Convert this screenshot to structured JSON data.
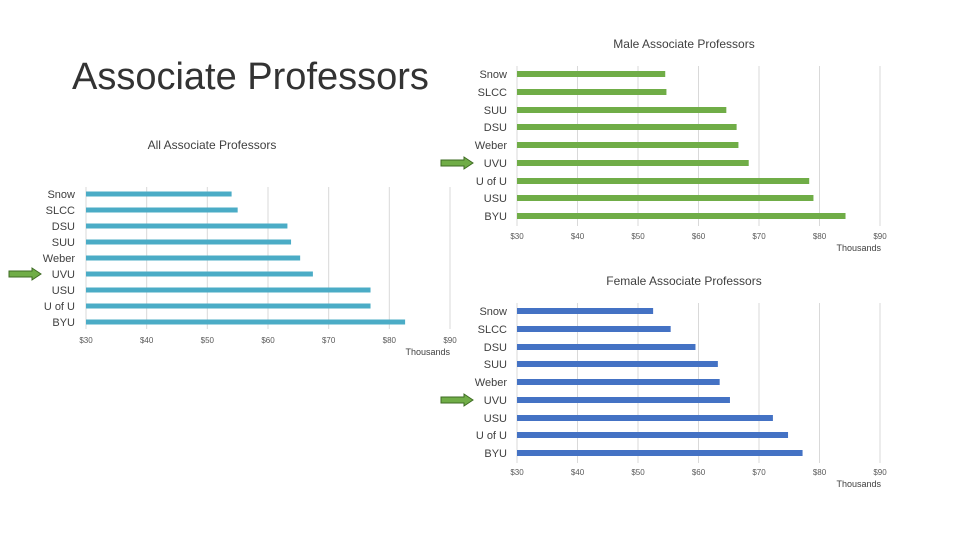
{
  "slide": {
    "title": "Associate Professors"
  },
  "chart_data": [
    {
      "id": "all",
      "type": "bar",
      "orientation": "horizontal",
      "title": "All Associate Professors",
      "categories": [
        "Snow",
        "SLCC",
        "DSU",
        "SUU",
        "Weber",
        "UVU",
        "USU",
        "U of U",
        "BYU"
      ],
      "values": [
        54,
        55,
        63.2,
        63.8,
        65.3,
        67.4,
        76.9,
        76.9,
        82.6
      ],
      "x_ticks": [
        "$30",
        "$40",
        "$50",
        "$60",
        "$70",
        "$80",
        "$90"
      ],
      "xlim": [
        30,
        90
      ],
      "units_label": "Thousands",
      "bar_color": "#4bacc6",
      "highlight": "UVU",
      "grid": true
    },
    {
      "id": "male",
      "type": "bar",
      "orientation": "horizontal",
      "title": "Male Associate Professors",
      "categories": [
        "Snow",
        "SLCC",
        "SUU",
        "DSU",
        "Weber",
        "UVU",
        "U of U",
        "USU",
        "BYU"
      ],
      "values": [
        54.5,
        54.7,
        64.6,
        66.3,
        66.6,
        68.3,
        78.3,
        79,
        84.3
      ],
      "x_ticks": [
        "$30",
        "$40",
        "$50",
        "$60",
        "$70",
        "$80",
        "$90"
      ],
      "xlim": [
        30,
        90
      ],
      "units_label": "Thousands",
      "bar_color": "#70ad47",
      "highlight": "UVU",
      "grid": true
    },
    {
      "id": "female",
      "type": "bar",
      "orientation": "horizontal",
      "title": "Female Associate Professors",
      "categories": [
        "Snow",
        "SLCC",
        "DSU",
        "SUU",
        "Weber",
        "UVU",
        "USU",
        "U of U",
        "BYU"
      ],
      "values": [
        52.5,
        55.4,
        59.5,
        63.2,
        63.5,
        65.2,
        72.3,
        74.8,
        77.2
      ],
      "x_ticks": [
        "$30",
        "$40",
        "$50",
        "$60",
        "$70",
        "$80",
        "$90"
      ],
      "xlim": [
        30,
        90
      ],
      "units_label": "Thousands",
      "bar_color": "#4472c4",
      "highlight": "UVU",
      "grid": true
    }
  ],
  "colors": {
    "arrow": "#70ad47",
    "arrow_outline": "#3e6b23",
    "grid": "#d9d9d9"
  },
  "icons": {
    "highlight_marker": "right-arrow-icon"
  }
}
